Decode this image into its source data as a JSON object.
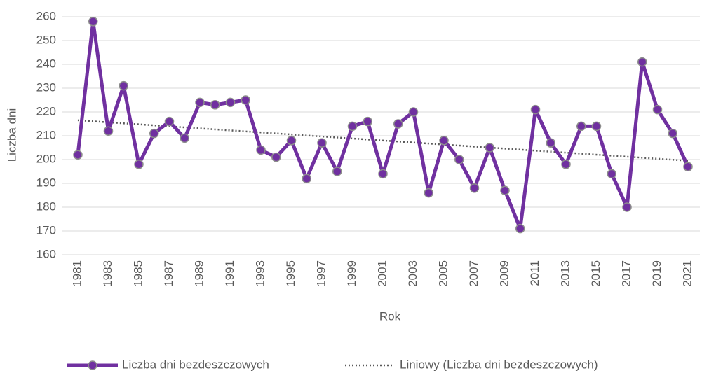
{
  "chart_data": {
    "type": "line",
    "x_label": "Rok",
    "y_label": "Liczba dni",
    "categories": [
      "1981",
      null,
      "1983",
      null,
      "1985",
      null,
      "1987",
      null,
      "1989",
      null,
      "1991",
      null,
      "1993",
      null,
      "1995",
      null,
      "1997",
      null,
      "1999",
      null,
      "2001",
      null,
      "2003",
      null,
      "2005",
      null,
      "2007",
      null,
      "2009",
      null,
      "2011",
      null,
      "2013",
      null,
      "2015",
      null,
      "2017",
      null,
      "2019",
      null,
      "2021"
    ],
    "series": [
      {
        "name": "Liczba dni bezdeszczowych",
        "color": "#7030a0",
        "values": [
          202,
          258,
          212,
          231,
          198,
          211,
          216,
          209,
          224,
          223,
          224,
          225,
          204,
          201,
          208,
          192,
          207,
          195,
          214,
          216,
          194,
          215,
          220,
          186,
          208,
          200,
          188,
          205,
          187,
          171,
          221,
          207,
          198,
          214,
          214,
          194,
          180,
          241,
          221,
          211,
          197
        ]
      }
    ],
    "trendline": {
      "name": "Liniowy (Liczba dni bezdeszczowych)",
      "color": "#595959",
      "start": 216.5,
      "end": 199.5
    },
    "ylim": [
      160,
      260
    ],
    "yticks": [
      160,
      170,
      180,
      190,
      200,
      210,
      220,
      230,
      240,
      250,
      260
    ],
    "grid": true,
    "legend": "bottom"
  }
}
